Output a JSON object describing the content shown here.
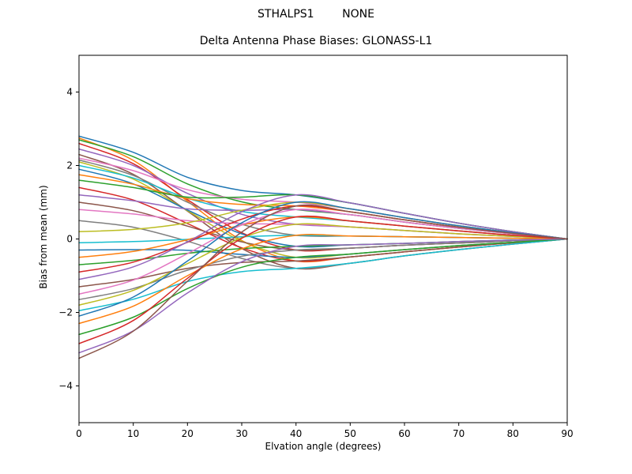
{
  "figure": {
    "suptitle": "STHALPS1        NONE",
    "title": "Delta Antenna Phase Biases: GLONASS-L1",
    "xlabel": "Elvation angle (degrees)",
    "ylabel": "Bias from mean (mm)"
  },
  "chart_data": {
    "type": "line",
    "title": "Delta Antenna Phase Biases: GLONASS-L1",
    "xlabel": "Elvation angle (degrees)",
    "ylabel": "Bias from mean (mm)",
    "xlim": [
      0,
      90
    ],
    "ylim": [
      -5,
      5
    ],
    "xticks": [
      0,
      10,
      20,
      30,
      40,
      50,
      60,
      70,
      80,
      90
    ],
    "yticks": [
      -4,
      -2,
      0,
      2,
      4
    ],
    "ytick_labels": [
      "−4",
      "−2",
      "0",
      "2",
      "4"
    ],
    "grid": false,
    "legend": "none",
    "line_width": 1.5,
    "x": [
      0,
      10,
      20,
      30,
      40,
      50,
      60,
      70,
      80,
      90
    ],
    "series": [
      {
        "color": "#1f77b4",
        "values": [
          2.8,
          2.36,
          1.68,
          1.32,
          1.2,
          0.98,
          0.7,
          0.43,
          0.2,
          0
        ]
      },
      {
        "color": "#ff7f0e",
        "values": [
          2.75,
          2.14,
          1.03,
          -0.04,
          -0.6,
          -0.49,
          -0.35,
          -0.22,
          -0.1,
          0
        ]
      },
      {
        "color": "#2ca02c",
        "values": [
          2.7,
          2.24,
          1.5,
          1.01,
          0.8,
          0.66,
          0.46,
          0.29,
          0.14,
          0
        ]
      },
      {
        "color": "#d62728",
        "values": [
          2.6,
          2.05,
          1.07,
          0.17,
          -0.3,
          -0.25,
          -0.17,
          -0.11,
          -0.05,
          0
        ]
      },
      {
        "color": "#9467bd",
        "values": [
          2.45,
          2.0,
          1.24,
          0.67,
          0.4,
          0.33,
          0.23,
          0.14,
          0.07,
          0
        ]
      },
      {
        "color": "#8c564b",
        "values": [
          2.3,
          1.76,
          0.76,
          -0.26,
          -0.8,
          -0.66,
          -0.46,
          -0.29,
          -0.14,
          0
        ]
      },
      {
        "color": "#e377c2",
        "values": [
          2.2,
          1.86,
          1.34,
          1.08,
          1.0,
          0.82,
          0.58,
          0.36,
          0.17,
          0
        ]
      },
      {
        "color": "#7f7f7f",
        "values": [
          2.15,
          1.73,
          1.0,
          0.4,
          0.1,
          0.08,
          0.06,
          0.04,
          0.02,
          0
        ]
      },
      {
        "color": "#bcbd22",
        "values": [
          2.1,
          1.63,
          0.77,
          -0.06,
          -0.5,
          -0.41,
          -0.29,
          -0.18,
          -0.09,
          0
        ]
      },
      {
        "color": "#17becf",
        "values": [
          2.0,
          1.66,
          1.11,
          0.75,
          0.6,
          0.49,
          0.35,
          0.22,
          0.1,
          0
        ]
      },
      {
        "color": "#1f77b4",
        "values": [
          1.9,
          1.5,
          0.79,
          0.14,
          -0.2,
          -0.16,
          -0.12,
          -0.07,
          -0.03,
          0
        ]
      },
      {
        "color": "#ff7f0e",
        "values": [
          1.75,
          1.49,
          1.1,
          0.94,
          0.9,
          0.74,
          0.52,
          0.32,
          0.15,
          0
        ]
      },
      {
        "color": "#2ca02c",
        "values": [
          1.6,
          1.4,
          1.14,
          1.14,
          1.2,
          0.98,
          0.7,
          0.43,
          0.2,
          0
        ]
      },
      {
        "color": "#d62728",
        "values": [
          1.4,
          1.06,
          0.42,
          -0.24,
          -0.6,
          -0.49,
          -0.35,
          -0.22,
          -0.1,
          0
        ]
      },
      {
        "color": "#9467bd",
        "values": [
          1.2,
          1.04,
          0.82,
          0.78,
          0.8,
          0.66,
          0.46,
          0.29,
          0.14,
          0
        ]
      },
      {
        "color": "#8c564b",
        "values": [
          1.0,
          0.77,
          0.35,
          -0.08,
          -0.3,
          -0.25,
          -0.17,
          -0.11,
          -0.05,
          0
        ]
      },
      {
        "color": "#e377c2",
        "values": [
          0.8,
          0.68,
          0.5,
          0.42,
          0.4,
          0.33,
          0.23,
          0.14,
          0.07,
          0
        ]
      },
      {
        "color": "#7f7f7f",
        "values": [
          0.5,
          0.32,
          -0.06,
          -0.53,
          -0.8,
          -0.66,
          -0.46,
          -0.29,
          -0.14,
          0
        ]
      },
      {
        "color": "#bcbd22",
        "values": [
          0.2,
          0.26,
          0.44,
          0.78,
          1.0,
          0.82,
          0.58,
          0.36,
          0.17,
          0
        ]
      },
      {
        "color": "#17becf",
        "values": [
          -0.1,
          -0.07,
          -0.01,
          0.06,
          0.1,
          0.08,
          0.06,
          0.04,
          0.02,
          0
        ]
      },
      {
        "color": "#1f77b4",
        "values": [
          -0.3,
          -0.29,
          -0.31,
          -0.42,
          -0.5,
          -0.41,
          -0.29,
          -0.18,
          -0.09,
          0
        ]
      },
      {
        "color": "#ff7f0e",
        "values": [
          -0.5,
          -0.34,
          -0.02,
          0.38,
          0.6,
          0.49,
          0.35,
          0.22,
          0.1,
          0
        ]
      },
      {
        "color": "#2ca02c",
        "values": [
          -0.7,
          -0.58,
          -0.39,
          -0.26,
          -0.2,
          -0.16,
          -0.12,
          -0.07,
          -0.03,
          0
        ]
      },
      {
        "color": "#d62728",
        "values": [
          -0.9,
          -0.63,
          -0.09,
          0.54,
          0.9,
          0.74,
          0.52,
          0.32,
          0.15,
          0
        ]
      },
      {
        "color": "#9467bd",
        "values": [
          -1.1,
          -0.76,
          -0.08,
          0.74,
          1.2,
          0.98,
          0.7,
          0.43,
          0.2,
          0
        ]
      },
      {
        "color": "#8c564b",
        "values": [
          -1.3,
          -1.1,
          -0.8,
          -0.64,
          -0.6,
          -0.49,
          -0.35,
          -0.22,
          -0.1,
          0
        ]
      },
      {
        "color": "#e377c2",
        "values": [
          -1.5,
          -1.12,
          -0.4,
          0.38,
          0.8,
          0.66,
          0.46,
          0.29,
          0.14,
          0
        ]
      },
      {
        "color": "#7f7f7f",
        "values": [
          -1.65,
          -1.35,
          -0.85,
          -0.47,
          -0.3,
          -0.25,
          -0.17,
          -0.11,
          -0.05,
          0
        ]
      },
      {
        "color": "#bcbd22",
        "values": [
          -1.8,
          -1.4,
          -0.67,
          0.03,
          0.4,
          0.33,
          0.23,
          0.14,
          0.07,
          0
        ]
      },
      {
        "color": "#17becf",
        "values": [
          -1.95,
          -1.64,
          -1.16,
          -0.89,
          -0.8,
          -0.66,
          -0.46,
          -0.29,
          -0.14,
          0
        ]
      },
      {
        "color": "#1f77b4",
        "values": [
          -2.1,
          -1.58,
          -0.6,
          0.44,
          1.0,
          0.82,
          0.58,
          0.36,
          0.17,
          0
        ]
      },
      {
        "color": "#ff7f0e",
        "values": [
          -2.3,
          -1.83,
          -1.0,
          -0.27,
          0.1,
          0.08,
          0.06,
          0.04,
          0.02,
          0
        ]
      },
      {
        "color": "#2ca02c",
        "values": [
          -2.6,
          -2.13,
          -1.35,
          -0.77,
          -0.5,
          -0.41,
          -0.29,
          -0.18,
          -0.09,
          0
        ]
      },
      {
        "color": "#d62728",
        "values": [
          -2.85,
          -2.22,
          -1.07,
          0.02,
          0.6,
          0.49,
          0.35,
          0.22,
          0.1,
          0
        ]
      },
      {
        "color": "#9467bd",
        "values": [
          -3.1,
          -2.5,
          -1.47,
          -0.62,
          -0.2,
          -0.16,
          -0.12,
          -0.07,
          -0.03,
          0
        ]
      },
      {
        "color": "#8c564b",
        "values": [
          -3.25,
          -2.51,
          -1.15,
          0.19,
          0.9,
          0.74,
          0.52,
          0.32,
          0.15,
          0
        ]
      }
    ]
  }
}
